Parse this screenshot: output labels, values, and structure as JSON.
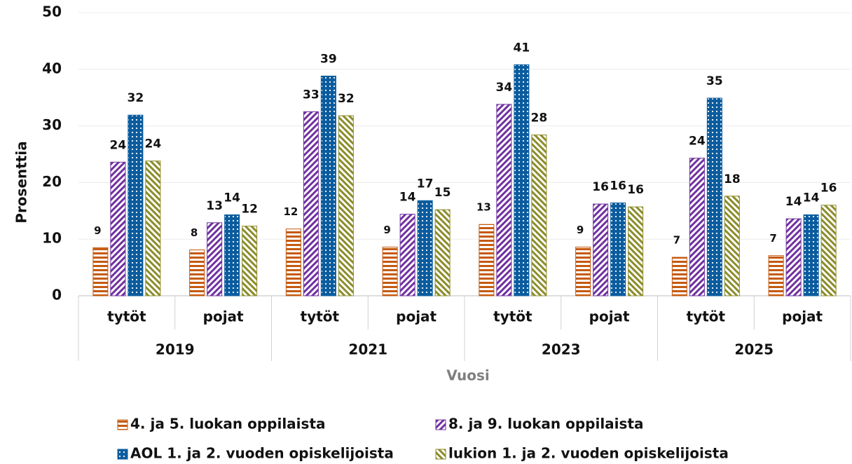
{
  "chart_data": {
    "type": "bar",
    "categories": [
      "tytöt",
      "pojat",
      "tytöt",
      "pojat",
      "tytöt",
      "pojat",
      "tytöt",
      "pojat"
    ],
    "groups": [
      "2019",
      "2021",
      "2023",
      "2025"
    ],
    "xlabel": "Vuosi",
    "ylabel": "Prosenttia",
    "ylim": [
      0,
      50
    ],
    "yticks": [
      0,
      10,
      20,
      30,
      40,
      50
    ],
    "grid": true,
    "legend": "bottom",
    "series": [
      {
        "name": "4. ja 5. luokan oppilaista",
        "color": "#c55a11",
        "values": [
          8.5,
          8.1,
          11.8,
          8.6,
          12.6,
          8.6,
          6.8,
          7.1
        ],
        "value_labels": [
          "9",
          "8",
          "12",
          "9",
          "13",
          "9",
          "7",
          "7"
        ]
      },
      {
        "name": "8. ja 9. luokan oppilaista",
        "color": "#7030a0",
        "values": [
          23.6,
          12.9,
          32.5,
          14.4,
          33.8,
          16.2,
          24.3,
          13.6
        ],
        "value_labels": [
          "24",
          "13",
          "33",
          "14",
          "34",
          "16",
          "24",
          "14"
        ]
      },
      {
        "name": "AOL 1. ja 2. vuoden opiskelijoista",
        "color": "#0b5c9e",
        "values": [
          31.9,
          14.3,
          38.8,
          16.8,
          40.8,
          16.4,
          34.9,
          14.3
        ],
        "value_labels": [
          "32",
          "14",
          "39",
          "17",
          "41",
          "16",
          "35",
          "14"
        ]
      },
      {
        "name": "lukion 1. ja 2. vuoden opiskelijoista",
        "color": "#8b8c2a",
        "values": [
          23.8,
          12.3,
          31.8,
          15.2,
          28.4,
          15.7,
          17.6,
          16.0
        ],
        "value_labels": [
          "24",
          "12",
          "32",
          "15",
          "28",
          "16",
          "18",
          "16"
        ]
      }
    ]
  }
}
